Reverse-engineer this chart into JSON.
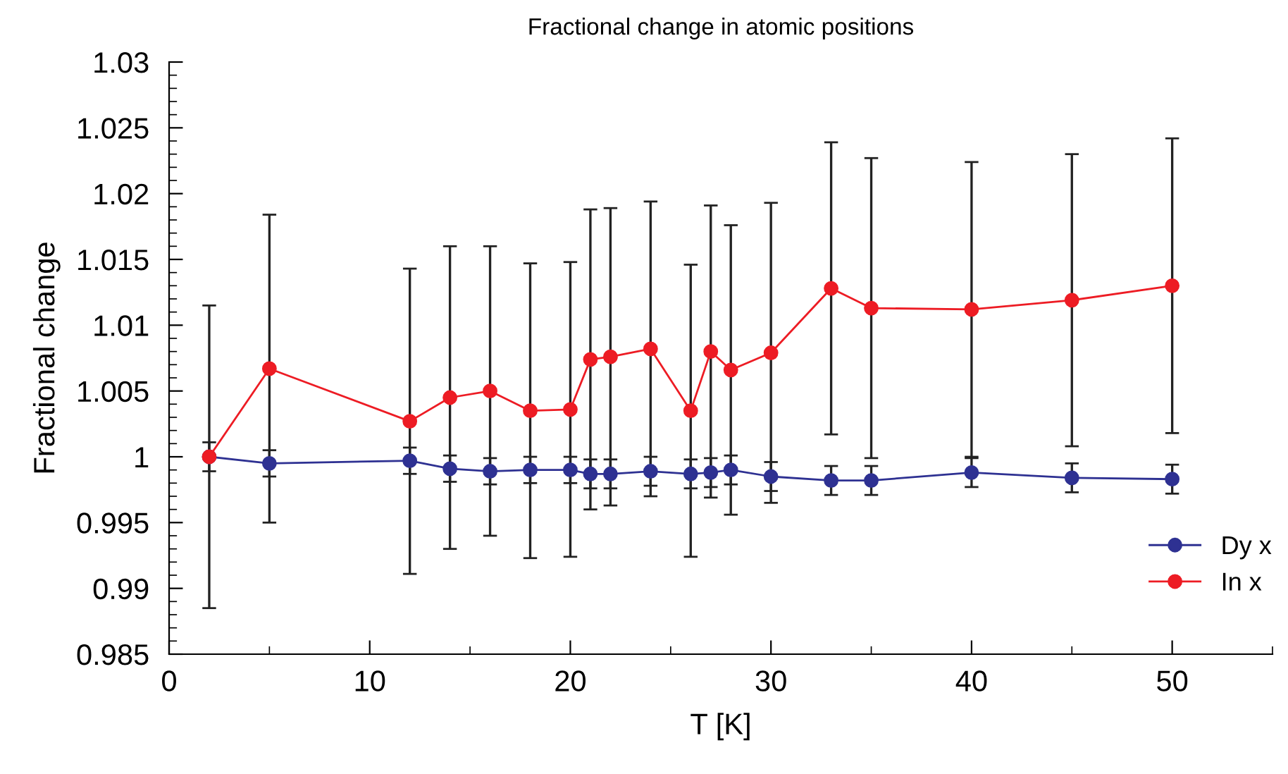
{
  "chart_data": {
    "type": "line",
    "title": "Fractional change in atomic positions",
    "xlabel": "T [K]",
    "ylabel": "Fractional change",
    "x": [
      2,
      5,
      12,
      14,
      16,
      18,
      20,
      21,
      22,
      24,
      26,
      27,
      28,
      30,
      33,
      35,
      40,
      45,
      50
    ],
    "series": [
      {
        "name": "Dy x",
        "color": "#2e3192",
        "values": [
          1.0,
          0.9995,
          0.9997,
          0.9991,
          0.9989,
          0.999,
          0.999,
          0.9987,
          0.9987,
          0.9989,
          0.9987,
          0.9988,
          0.999,
          0.9985,
          0.9982,
          0.9982,
          0.9988,
          0.9984,
          0.9983
        ],
        "errors": [
          0.0011,
          0.001,
          0.001,
          0.001,
          0.001,
          0.001,
          0.001,
          0.0011,
          0.0011,
          0.0011,
          0.0011,
          0.0011,
          0.0011,
          0.0011,
          0.0011,
          0.0011,
          0.0011,
          0.0011,
          0.0011
        ]
      },
      {
        "name": "In x",
        "color": "#ed1c24",
        "values": [
          1.0,
          1.0067,
          1.0027,
          1.0045,
          1.005,
          1.0035,
          1.0036,
          1.0074,
          1.0076,
          1.0082,
          1.0035,
          1.008,
          1.0066,
          1.0079,
          1.0128,
          1.0113,
          1.0112,
          1.0119,
          1.013
        ],
        "errors": [
          0.0115,
          0.0117,
          0.0116,
          0.0115,
          0.011,
          0.0112,
          0.0112,
          0.0114,
          0.0113,
          0.0112,
          0.0111,
          0.0111,
          0.011,
          0.0114,
          0.0111,
          0.0114,
          0.0112,
          0.0111,
          0.0112
        ]
      }
    ],
    "xlim": [
      0,
      55
    ],
    "xticks": [
      0,
      10,
      20,
      30,
      40,
      50
    ],
    "ylim": [
      0.985,
      1.03
    ],
    "yticks": [
      0.985,
      0.99,
      0.995,
      1,
      1.005,
      1.01,
      1.015,
      1.02,
      1.025,
      1.03
    ],
    "marker": "circle",
    "line_style": "solid",
    "grid": false,
    "legend": "bottom right"
  }
}
